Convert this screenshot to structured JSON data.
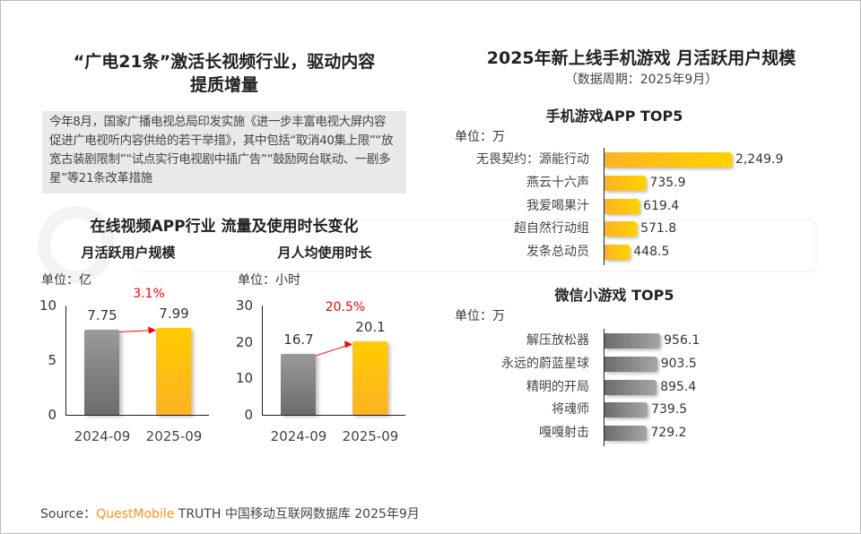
{
  "left": {
    "title": "“广电21条”激活长视频行业，驱动内容提质增量",
    "title_line1": "“广电21条”激活长视频行业，驱动内容",
    "title_line2": "提质增量",
    "description": "今年8月，国家广播电视总局印发实施《进一步丰富电视大屏内容 促进广电视听内容供给的若干举措》，其中包括“取消40集上限”“放宽古装剧限制”“试点实行电视剧中插广告”“鼓励网台联动、一剧多星”等21条改革措施",
    "section_title": "在线视频APP行业 流量及使用时长变化"
  },
  "right": {
    "title": "2025年新上线手机游戏 月活跃用户规模",
    "subtitle": "（数据周期：2025年9月）"
  },
  "watermark": "QUESTMOBILE",
  "chart_data": [
    {
      "type": "bar",
      "title": "月活跃用户规模",
      "unit": "单位：亿",
      "categories": [
        "2024-09",
        "2025-09"
      ],
      "values": [
        7.75,
        7.99
      ],
      "value_labels": [
        "7.75",
        "7.99"
      ],
      "ylim": [
        0,
        10
      ],
      "yticks": [
        "0",
        "5",
        "10"
      ],
      "growth": "3.1%",
      "colors": [
        "#808080",
        "#ffc20e"
      ]
    },
    {
      "type": "bar",
      "title": "月人均使用时长",
      "unit": "单位：小时",
      "categories": [
        "2024-09",
        "2025-09"
      ],
      "values": [
        16.7,
        20.1
      ],
      "value_labels": [
        "16.7",
        "20.1"
      ],
      "ylim": [
        0,
        30
      ],
      "yticks": [
        "0",
        "10",
        "20",
        "30"
      ],
      "growth": "20.5%",
      "colors": [
        "#808080",
        "#ffc20e"
      ]
    },
    {
      "type": "bar",
      "orientation": "horizontal",
      "title": "手机游戏APP TOP5",
      "unit": "单位：万",
      "categories": [
        "无畏契约：源能行动",
        "燕云十六声",
        "我爱喝果汁",
        "超自然行动组",
        "发条总动员"
      ],
      "values": [
        2249.9,
        735.9,
        619.4,
        571.8,
        448.5
      ],
      "value_labels": [
        "2,249.9",
        "735.9",
        "619.4",
        "571.8",
        "448.5"
      ],
      "color": "#ffc20e"
    },
    {
      "type": "bar",
      "orientation": "horizontal",
      "title": "微信小游戏 TOP5",
      "unit": "单位：万",
      "categories": [
        "解压放松器",
        "永远的蔚蓝星球",
        "精明的开局",
        "将魂师",
        "嘎嘎射击"
      ],
      "values": [
        956.1,
        903.5,
        895.4,
        739.5,
        729.2
      ],
      "value_labels": [
        "956.1",
        "903.5",
        "895.4",
        "739.5",
        "729.2"
      ],
      "color": "#808080"
    }
  ],
  "source": {
    "label": "Source：",
    "brand": "QuestMobile",
    "text": " TRUTH 中国移动互联网数据库 2025年9月"
  }
}
